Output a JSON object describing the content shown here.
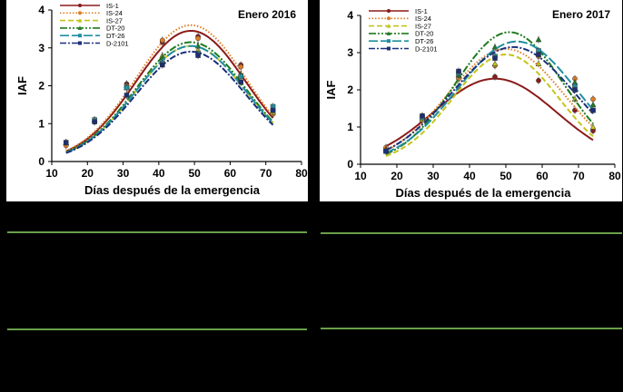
{
  "colors": {
    "IS-1": "#8b1a1a",
    "IS-24": "#e07b24",
    "IS-27": "#c4c41a",
    "DT-20": "#1e7a1e",
    "DT-26": "#1f8fa0",
    "D-2101": "#1a2f7a",
    "divider": "#69a04a"
  },
  "chart_data": [
    {
      "type": "line",
      "title": "Enero 2016",
      "xlabel": "Días después de la emergencia",
      "ylabel": "IAF",
      "xlim": [
        10,
        80
      ],
      "ylim": [
        0,
        4
      ],
      "xticks": [
        "10",
        "20",
        "30",
        "40",
        "50",
        "60",
        "70",
        "80"
      ],
      "yticks": [
        "0",
        "1",
        "2",
        "3",
        "4"
      ],
      "legend_position": "top-left",
      "series": [
        {
          "name": "IS-1",
          "style": "solid",
          "marker": "circle",
          "x": [
            14,
            22,
            31,
            41,
            51,
            63,
            72
          ],
          "y": [
            0.45,
            1.05,
            2.05,
            3.15,
            3.3,
            2.55,
            1.3
          ],
          "curve": {
            "peak_x": 49,
            "peak_y": 3.45,
            "sigma": 15.5
          }
        },
        {
          "name": "IS-24",
          "style": "dotted",
          "marker": "circle",
          "x": [
            14,
            22,
            31,
            41,
            51,
            63,
            72
          ],
          "y": [
            0.42,
            1.05,
            2.0,
            3.2,
            3.25,
            2.5,
            1.25
          ],
          "curve": {
            "peak_x": 49,
            "peak_y": 3.6,
            "sigma": 15.5
          }
        },
        {
          "name": "IS-27",
          "style": "dashed",
          "marker": "triangle",
          "x": [
            14,
            22,
            31,
            41,
            51,
            63,
            72
          ],
          "y": [
            0.5,
            1.1,
            2.0,
            2.8,
            2.95,
            2.3,
            1.3
          ],
          "curve": {
            "peak_x": 49,
            "peak_y": 3.05,
            "sigma": 15.5
          }
        },
        {
          "name": "DT-20",
          "style": "dashdotdot",
          "marker": "triangle",
          "x": [
            14,
            22,
            31,
            41,
            51,
            63,
            72
          ],
          "y": [
            0.5,
            1.1,
            1.95,
            2.75,
            3.05,
            2.3,
            1.4
          ],
          "curve": {
            "peak_x": 49,
            "peak_y": 3.15,
            "sigma": 15.5
          }
        },
        {
          "name": "DT-26",
          "style": "longdash",
          "marker": "square",
          "x": [
            14,
            22,
            31,
            41,
            51,
            63,
            72
          ],
          "y": [
            0.5,
            1.1,
            1.95,
            2.6,
            2.85,
            2.25,
            1.45
          ],
          "curve": {
            "peak_x": 49,
            "peak_y": 3.05,
            "sigma": 15.5
          }
        },
        {
          "name": "D-2101",
          "style": "dashdot",
          "marker": "square",
          "x": [
            14,
            22,
            31,
            41,
            51,
            63,
            72
          ],
          "y": [
            0.5,
            1.05,
            1.75,
            2.55,
            2.8,
            2.1,
            1.35
          ],
          "curve": {
            "peak_x": 49,
            "peak_y": 2.9,
            "sigma": 15.5
          }
        }
      ]
    },
    {
      "type": "line",
      "title": "Enero 2017",
      "xlabel": "Días después de la emergencia",
      "ylabel": "IAF",
      "xlim": [
        10,
        80
      ],
      "ylim": [
        0,
        4
      ],
      "xticks": [
        "10",
        "20",
        "30",
        "40",
        "50",
        "60",
        "70",
        "80"
      ],
      "yticks": [
        "0",
        "1",
        "2",
        "3",
        "4"
      ],
      "legend_position": "top-left",
      "series": [
        {
          "name": "IS-1",
          "style": "solid",
          "marker": "circle",
          "x": [
            17,
            27,
            37,
            47,
            59,
            69,
            74
          ],
          "y": [
            0.4,
            1.3,
            2.05,
            2.35,
            2.25,
            1.45,
            0.9
          ],
          "curve": {
            "peak_x": 47,
            "peak_y": 2.3,
            "sigma": 17
          }
        },
        {
          "name": "IS-24",
          "style": "dotted",
          "marker": "circle",
          "x": [
            17,
            27,
            37,
            47,
            59,
            69,
            74
          ],
          "y": [
            0.45,
            1.2,
            2.3,
            2.65,
            2.9,
            2.3,
            1.75
          ],
          "curve": {
            "peak_x": 50,
            "peak_y": 3.1,
            "sigma": 16
          }
        },
        {
          "name": "IS-27",
          "style": "dashed",
          "marker": "triangle",
          "x": [
            17,
            27,
            37,
            47,
            59,
            69,
            74
          ],
          "y": [
            0.4,
            1.2,
            2.4,
            2.7,
            2.7,
            1.75,
            1.0
          ],
          "curve": {
            "peak_x": 50,
            "peak_y": 2.95,
            "sigma": 14.5
          }
        },
        {
          "name": "DT-20",
          "style": "dashdotdot",
          "marker": "triangle",
          "x": [
            17,
            27,
            37,
            47,
            59,
            69,
            74
          ],
          "y": [
            0.4,
            1.3,
            2.4,
            3.15,
            3.35,
            2.2,
            1.6
          ],
          "curve": {
            "peak_x": 51,
            "peak_y": 3.55,
            "sigma": 15
          }
        },
        {
          "name": "DT-26",
          "style": "longdash",
          "marker": "square",
          "x": [
            17,
            27,
            37,
            47,
            59,
            69,
            74
          ],
          "y": [
            0.35,
            1.25,
            2.45,
            2.9,
            3.05,
            2.1,
            1.45
          ],
          "curve": {
            "peak_x": 53,
            "peak_y": 3.3,
            "sigma": 16.5
          }
        },
        {
          "name": "D-2101",
          "style": "dashdot",
          "marker": "square",
          "x": [
            17,
            27,
            37,
            47,
            59,
            69,
            74
          ],
          "y": [
            0.35,
            1.3,
            2.5,
            2.85,
            2.95,
            2.0,
            1.45
          ],
          "curve": {
            "peak_x": 52,
            "peak_y": 3.15,
            "sigma": 17
          }
        }
      ]
    }
  ]
}
